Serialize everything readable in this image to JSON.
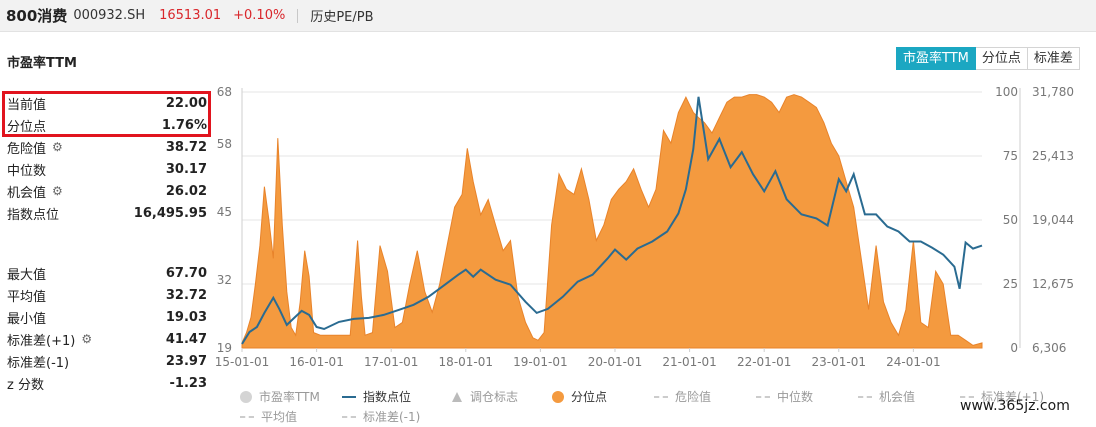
{
  "header": {
    "name": "800消费",
    "code": "000932.SH",
    "price": "16513.01",
    "change": "+0.10%",
    "pe_link": "历史PE/PB"
  },
  "section_title": "市盈率TTM",
  "tabs": [
    "市盈率TTM",
    "分位点",
    "标准差"
  ],
  "stats": [
    {
      "label": "当前值",
      "value": "22.00",
      "gear": false
    },
    {
      "label": "分位点",
      "value": "1.76%",
      "gear": false
    },
    {
      "label": "危险值",
      "value": "38.72",
      "gear": true
    },
    {
      "label": "中位数",
      "value": "30.17",
      "gear": false
    },
    {
      "label": "机会值",
      "value": "26.02",
      "gear": true
    },
    {
      "label": "指数点位",
      "value": "16,495.95",
      "gear": false
    },
    {
      "label": "最大值",
      "value": "67.70",
      "gear": false
    },
    {
      "label": "平均值",
      "value": "32.72",
      "gear": false
    },
    {
      "label": "最小值",
      "value": "19.03",
      "gear": false
    },
    {
      "label": "标准差(+1)",
      "value": "41.47",
      "gear": true
    },
    {
      "label": "标准差(-1)",
      "value": "23.97",
      "gear": false
    },
    {
      "label": "z 分数",
      "value": "-1.23",
      "gear": false
    }
  ],
  "legend": [
    "市盈率TTM",
    "指数点位",
    "调仓标志",
    "分位点",
    "危险值",
    "中位数",
    "机会值",
    "标准差(+1)",
    "平均值",
    "标准差(-1)"
  ],
  "watermark": "www.365jz.com",
  "colors": {
    "percentile_fill": "#f49a3f",
    "percentile_line": "#e8832a",
    "index_line": "#2a6b91",
    "accent": "#1ba7c2",
    "highlight": "#e1141e"
  },
  "chart_data": {
    "type": "area",
    "x_ticks": [
      "15-01-01",
      "16-01-01",
      "17-01-01",
      "18-01-01",
      "19-01-01",
      "20-01-01",
      "21-01-01",
      "22-01-01",
      "23-01-01",
      "24-01-01"
    ],
    "y_left_ticks": [
      "19",
      "32",
      "45",
      "58",
      "68"
    ],
    "y_left_range": [
      19,
      68
    ],
    "y_mid_ticks": [
      "0",
      "25",
      "50",
      "75",
      "100"
    ],
    "y_mid_range": [
      0,
      100
    ],
    "y_right_ticks": [
      "6,306",
      "12,675",
      "19,044",
      "25,413",
      "31,780"
    ],
    "y_right_range": [
      6306,
      31780
    ],
    "series": [
      {
        "name": "分位点",
        "axis": "percentile",
        "x": [
          2015.0,
          2015.06,
          2015.12,
          2015.18,
          2015.24,
          2015.3,
          2015.36,
          2015.42,
          2015.48,
          2015.54,
          2015.6,
          2015.66,
          2015.72,
          2015.78,
          2015.84,
          2015.9,
          2015.96,
          2016.05,
          2016.15,
          2016.25,
          2016.35,
          2016.45,
          2016.55,
          2016.6,
          2016.65,
          2016.75,
          2016.85,
          2016.95,
          2017.05,
          2017.15,
          2017.25,
          2017.35,
          2017.45,
          2017.55,
          2017.65,
          2017.75,
          2017.85,
          2017.95,
          2018.02,
          2018.1,
          2018.2,
          2018.3,
          2018.4,
          2018.5,
          2018.6,
          2018.7,
          2018.8,
          2018.9,
          2018.97,
          2019.05,
          2019.15,
          2019.25,
          2019.35,
          2019.45,
          2019.55,
          2019.65,
          2019.75,
          2019.85,
          2019.95,
          2020.05,
          2020.15,
          2020.25,
          2020.35,
          2020.45,
          2020.55,
          2020.65,
          2020.75,
          2020.85,
          2020.95,
          2021.0,
          2021.05,
          2021.12,
          2021.2,
          2021.3,
          2021.4,
          2021.5,
          2021.6,
          2021.7,
          2021.8,
          2021.9,
          2022.0,
          2022.1,
          2022.2,
          2022.3,
          2022.4,
          2022.5,
          2022.6,
          2022.7,
          2022.8,
          2022.9,
          2023.0,
          2023.05,
          2023.1,
          2023.2,
          2023.3,
          2023.4,
          2023.5,
          2023.6,
          2023.7,
          2023.8,
          2023.9,
          2024.0,
          2024.1,
          2024.2,
          2024.3,
          2024.4,
          2024.5,
          2024.6,
          2024.7,
          2024.8,
          2024.92
        ],
        "values": [
          2,
          6,
          12,
          25,
          40,
          63,
          50,
          35,
          82,
          48,
          22,
          8,
          5,
          18,
          38,
          28,
          6,
          5,
          5,
          5,
          5,
          5,
          42,
          20,
          5,
          6,
          40,
          30,
          8,
          10,
          25,
          38,
          22,
          14,
          25,
          40,
          55,
          60,
          78,
          65,
          52,
          58,
          48,
          38,
          42,
          20,
          10,
          4,
          3,
          6,
          48,
          68,
          62,
          60,
          70,
          58,
          42,
          48,
          58,
          62,
          65,
          70,
          62,
          55,
          62,
          85,
          80,
          92,
          98,
          95,
          92,
          90,
          88,
          84,
          90,
          96,
          98,
          98,
          99,
          99,
          98,
          96,
          92,
          98,
          99,
          98,
          96,
          94,
          88,
          80,
          75,
          70,
          65,
          55,
          35,
          15,
          40,
          18,
          10,
          5,
          15,
          42,
          10,
          8,
          30,
          25,
          5,
          5,
          3,
          1,
          2
        ]
      },
      {
        "name": "指数点位",
        "axis": "index",
        "x": [
          2015.0,
          2015.1,
          2015.2,
          2015.3,
          2015.42,
          2015.5,
          2015.6,
          2015.7,
          2015.8,
          2015.9,
          2016.0,
          2016.1,
          2016.3,
          2016.5,
          2016.7,
          2016.9,
          2017.1,
          2017.3,
          2017.5,
          2017.7,
          2017.9,
          2018.0,
          2018.1,
          2018.2,
          2018.4,
          2018.6,
          2018.8,
          2018.95,
          2019.1,
          2019.3,
          2019.5,
          2019.7,
          2019.9,
          2020.0,
          2020.15,
          2020.3,
          2020.5,
          2020.7,
          2020.85,
          2020.95,
          2021.05,
          2021.12,
          2021.25,
          2021.4,
          2021.55,
          2021.7,
          2021.85,
          2022.0,
          2022.15,
          2022.3,
          2022.5,
          2022.7,
          2022.85,
          2023.0,
          2023.1,
          2023.2,
          2023.35,
          2023.5,
          2023.65,
          2023.8,
          2023.95,
          2024.1,
          2024.25,
          2024.4,
          2024.55,
          2024.62,
          2024.7,
          2024.8,
          2024.92
        ],
        "values": [
          6700,
          7900,
          8400,
          9800,
          11300,
          10200,
          8600,
          9300,
          10000,
          9600,
          8400,
          8200,
          8900,
          9200,
          9300,
          9600,
          10100,
          10600,
          11400,
          12500,
          13600,
          14100,
          13400,
          14100,
          13100,
          12600,
          10900,
          9800,
          10200,
          11400,
          12900,
          13600,
          15200,
          16100,
          15100,
          16200,
          16900,
          17900,
          19700,
          22100,
          26100,
          31300,
          25100,
          27100,
          24300,
          25800,
          23600,
          21900,
          23900,
          21100,
          19600,
          19200,
          18500,
          23100,
          21900,
          23600,
          19600,
          19600,
          18400,
          17900,
          16900,
          16900,
          16300,
          15600,
          14400,
          12200,
          16800,
          16200,
          16500
        ]
      }
    ]
  }
}
